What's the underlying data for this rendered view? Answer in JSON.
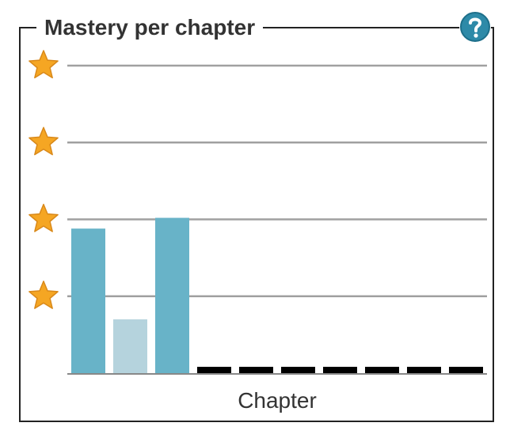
{
  "panel": {
    "title": "Mastery per chapter",
    "help_icon": "help-question-icon"
  },
  "colors": {
    "bar_primary": "#68b3c8",
    "bar_light": "#b5d3dd",
    "bar_empty": "#000000",
    "gridline": "#a0a0a0",
    "star": "#f5a623",
    "help": "#2e8aa8"
  },
  "chart_data": {
    "type": "bar",
    "xlabel": "Chapter",
    "ylabel": "",
    "ylim": [
      0,
      4
    ],
    "y_tick_icon": "star-icon",
    "y_ticks": [
      1,
      2,
      3,
      4
    ],
    "grid": true,
    "categories": [
      "",
      "",
      "",
      "",
      "",
      "",
      "",
      "",
      "",
      ""
    ],
    "values": [
      1.88,
      0.7,
      2.02,
      0,
      0,
      0,
      0,
      0,
      0,
      0
    ],
    "bar_styles": [
      "primary",
      "light",
      "primary",
      "empty",
      "empty",
      "empty",
      "empty",
      "empty",
      "empty",
      "empty"
    ]
  }
}
